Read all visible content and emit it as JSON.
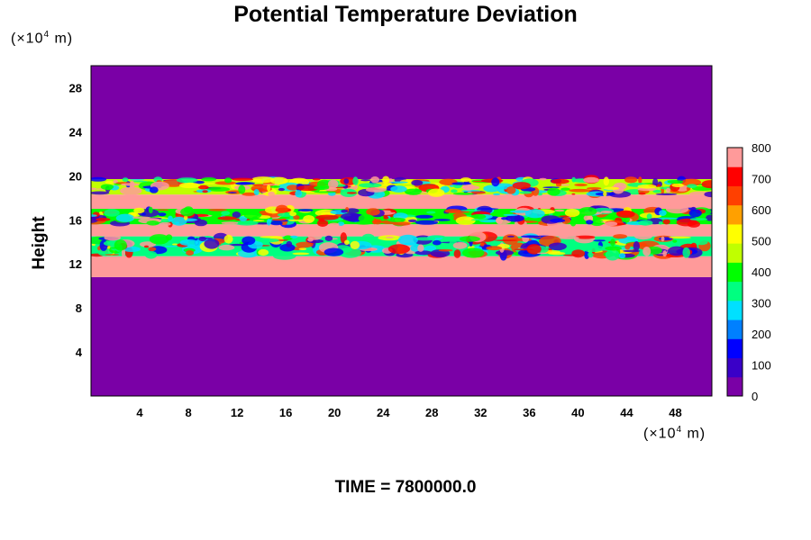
{
  "chart_data": {
    "type": "heatmap",
    "title": "Potential Temperature Deviation",
    "ylabel": "Height",
    "xlabel": "",
    "x_unit": {
      "prefix": "(×10",
      "exp": "4",
      "suffix": " m)"
    },
    "y_unit": {
      "prefix": "(×10",
      "exp": "4",
      "suffix": " m)"
    },
    "xlim": [
      0,
      51
    ],
    "ylim": [
      0,
      30
    ],
    "x_ticks": [
      4,
      8,
      12,
      16,
      20,
      24,
      28,
      32,
      36,
      40,
      44,
      48
    ],
    "y_ticks": [
      4,
      8,
      12,
      16,
      20,
      24,
      28
    ],
    "colorbar": {
      "min": 0,
      "max": 800,
      "ticks": [
        0,
        100,
        200,
        300,
        400,
        500,
        600,
        700,
        800
      ],
      "colors": [
        "#7a00a6",
        "#3a00c8",
        "#0000ff",
        "#0080ff",
        "#00e0ff",
        "#00ff80",
        "#00ff00",
        "#c0ff00",
        "#ffff00",
        "#ffa000",
        "#ff4000",
        "#ff0000",
        "#ff9a9a"
      ]
    },
    "layers": [
      {
        "name": "lower-quiescent",
        "y_range": [
          0,
          10.8
        ],
        "value": 0
      },
      {
        "name": "stable-layer",
        "y_range": [
          10.8,
          12.7
        ],
        "value": 800
      },
      {
        "name": "turbulent-band-lower",
        "y_range": [
          12.7,
          14.5
        ],
        "value": 350
      },
      {
        "name": "warm-layer-1",
        "y_range": [
          14.5,
          15.6
        ],
        "value": 800
      },
      {
        "name": "turbulent-band-middle",
        "y_range": [
          15.6,
          17.0
        ],
        "value": 400
      },
      {
        "name": "warm-layer-2",
        "y_range": [
          17.0,
          18.3
        ],
        "value": 800
      },
      {
        "name": "turbulent-band-upper",
        "y_range": [
          18.3,
          19.7
        ],
        "value": 450
      },
      {
        "name": "upper-quiescent",
        "y_range": [
          19.7,
          30
        ],
        "value": 0
      }
    ]
  },
  "time_label": "TIME = 7800000.0"
}
